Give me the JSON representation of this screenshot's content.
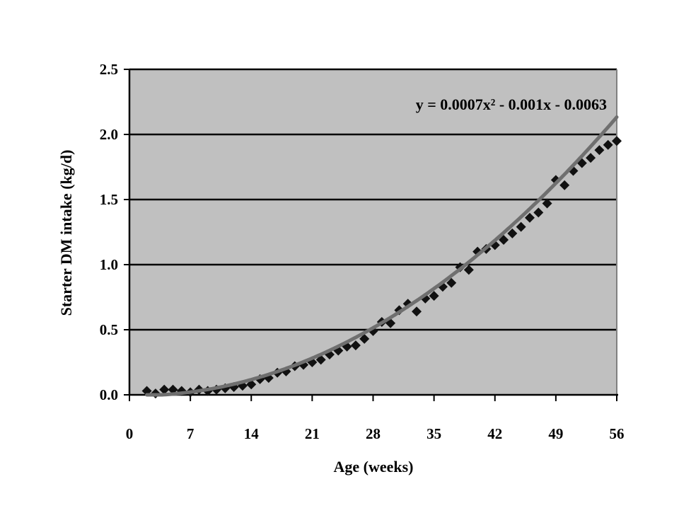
{
  "chart_data": {
    "type": "scatter",
    "title": "",
    "xlabel": "Age (weeks)",
    "ylabel": "Starter DM intake (kg/d)",
    "xlim": [
      0,
      56
    ],
    "ylim": [
      0,
      2.5
    ],
    "x_ticks": [
      0,
      7,
      14,
      21,
      28,
      35,
      42,
      49,
      56
    ],
    "y_ticks": [
      0.0,
      0.5,
      1.0,
      1.5,
      2.0,
      2.5
    ],
    "y_tick_labels": [
      "0.0",
      "0.5",
      "1.0",
      "1.5",
      "2.0",
      "2.5"
    ],
    "gridlines": "horizontal",
    "background": "#c0c0c0",
    "marker": "diamond",
    "marker_color": "#111111",
    "trendline_color": "#6f6f6f",
    "equation": "y = 0.0007x² - 0.001x - 0.0063",
    "trendline": {
      "type": "polynomial",
      "coefficients": [
        0.0007,
        -0.001,
        -0.0063
      ]
    },
    "series": [
      {
        "points": [
          [
            2,
            0.03
          ],
          [
            3,
            0.01
          ],
          [
            4,
            0.04
          ],
          [
            5,
            0.04
          ],
          [
            6,
            0.03
          ],
          [
            7,
            0.02
          ],
          [
            8,
            0.04
          ],
          [
            9,
            0.03
          ],
          [
            10,
            0.04
          ],
          [
            11,
            0.05
          ],
          [
            12,
            0.06
          ],
          [
            13,
            0.07
          ],
          [
            14,
            0.08
          ],
          [
            15,
            0.12
          ],
          [
            16,
            0.13
          ],
          [
            17,
            0.17
          ],
          [
            18,
            0.18
          ],
          [
            19,
            0.22
          ],
          [
            20,
            0.23
          ],
          [
            21,
            0.25
          ],
          [
            22,
            0.27
          ],
          [
            23,
            0.31
          ],
          [
            24,
            0.34
          ],
          [
            25,
            0.37
          ],
          [
            26,
            0.38
          ],
          [
            27,
            0.43
          ],
          [
            28,
            0.49
          ],
          [
            29,
            0.56
          ],
          [
            30,
            0.55
          ],
          [
            31,
            0.65
          ],
          [
            32,
            0.7
          ],
          [
            33,
            0.64
          ],
          [
            34,
            0.74
          ],
          [
            35,
            0.76
          ],
          [
            36,
            0.83
          ],
          [
            37,
            0.86
          ],
          [
            38,
            0.98
          ],
          [
            39,
            0.96
          ],
          [
            40,
            1.1
          ],
          [
            41,
            1.12
          ],
          [
            42,
            1.15
          ],
          [
            43,
            1.19
          ],
          [
            44,
            1.24
          ],
          [
            45,
            1.29
          ],
          [
            46,
            1.36
          ],
          [
            47,
            1.4
          ],
          [
            48,
            1.47
          ],
          [
            49,
            1.65
          ],
          [
            50,
            1.61
          ],
          [
            51,
            1.72
          ],
          [
            52,
            1.78
          ],
          [
            53,
            1.82
          ],
          [
            54,
            1.88
          ],
          [
            55,
            1.92
          ],
          [
            56,
            1.95
          ]
        ]
      }
    ]
  }
}
